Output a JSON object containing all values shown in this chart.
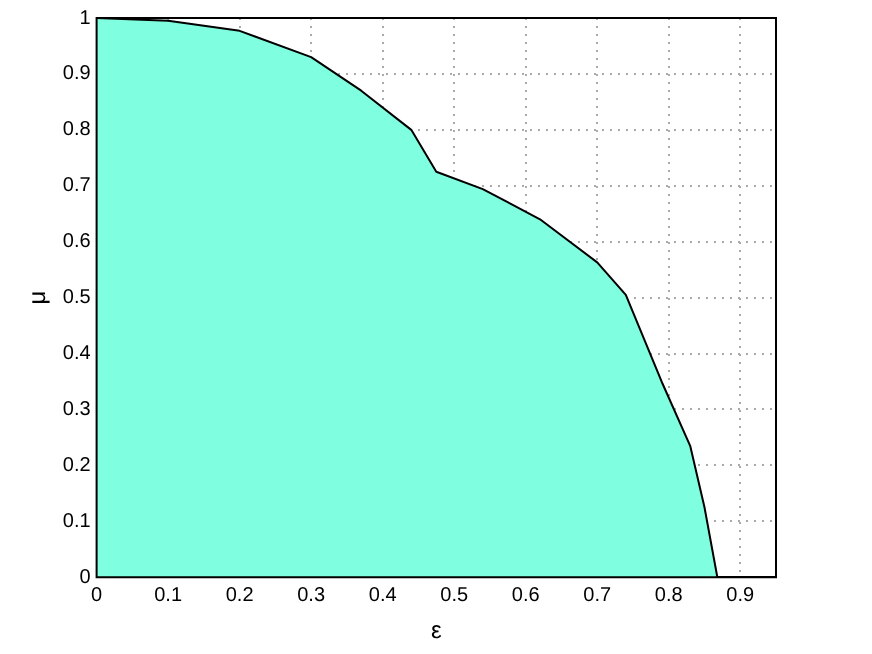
{
  "chart_data": {
    "type": "area",
    "xlabel": "ε",
    "ylabel": "μ",
    "x": [
      0,
      0.1,
      0.2,
      0.3,
      0.37,
      0.44,
      0.475,
      0.54,
      0.62,
      0.7,
      0.74,
      0.79,
      0.83,
      0.85,
      0.868
    ],
    "series": [
      {
        "color": "#7fffdf",
        "values": [
          1,
          0.995,
          0.977,
          0.93,
          0.87,
          0.8,
          0.725,
          0.694,
          0.64,
          0.563,
          0.505,
          0.35,
          0.235,
          0.125,
          0
        ]
      }
    ],
    "xlim": [
      0,
      0.95
    ],
    "ylim": [
      0,
      1
    ],
    "xticks": [
      0,
      0.1,
      0.2,
      0.3,
      0.4,
      0.5,
      0.6,
      0.7,
      0.8,
      0.9
    ],
    "yticks": [
      0,
      0.1,
      0.2,
      0.3,
      0.4,
      0.5,
      0.6,
      0.7,
      0.8,
      0.9,
      1
    ],
    "grid": true,
    "legend": false
  }
}
